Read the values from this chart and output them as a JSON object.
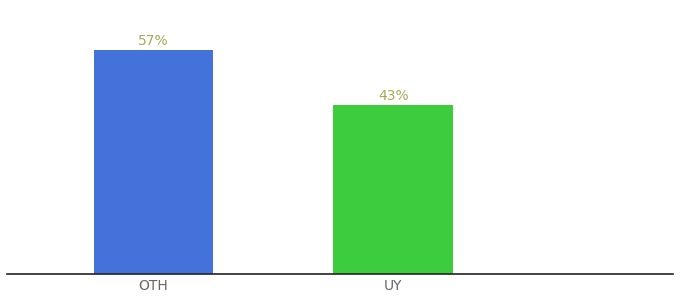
{
  "categories": [
    "OTH",
    "UY"
  ],
  "values": [
    57,
    43
  ],
  "bar_colors": [
    "#4472db",
    "#3dcc3d"
  ],
  "value_labels": [
    "57%",
    "43%"
  ],
  "background_color": "#ffffff",
  "bar_width": 0.18,
  "x_positions": [
    0.22,
    0.58
  ],
  "xlim": [
    0.0,
    1.0
  ],
  "ylim": [
    0,
    68
  ],
  "label_fontsize": 10,
  "tick_fontsize": 10,
  "label_color": "#aaa855",
  "tick_color": "#666666",
  "spine_color": "#222222"
}
